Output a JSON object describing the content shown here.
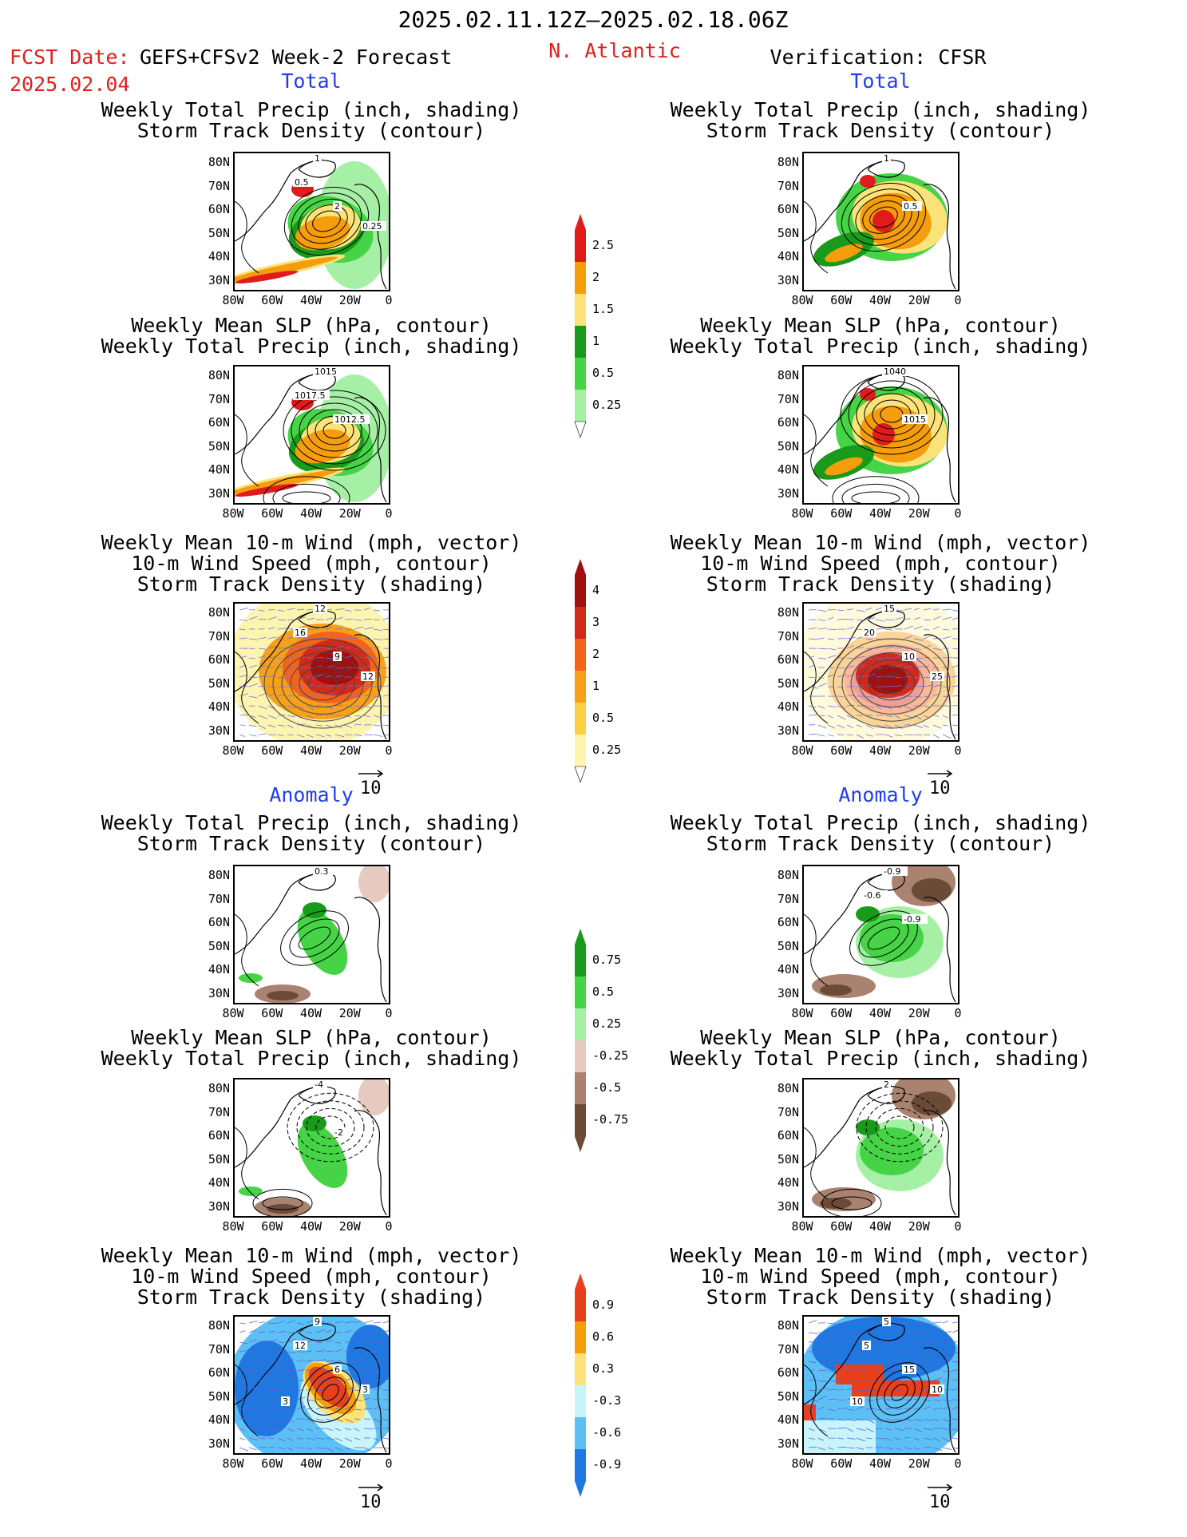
{
  "header": {
    "period": "2025.02.11.12Z–2025.02.18.06Z",
    "fcst_label": "FCST Date:",
    "model": "GEFS+CFSv2 Week-2 Forecast",
    "fcst_date": "2025.02.04",
    "region": "N. Atlantic",
    "verification": "Verification: CFSR"
  },
  "sections": {
    "total": "Total",
    "anomaly": "Anomaly"
  },
  "titles": {
    "p1_l1": "Weekly Total Precip (inch, shading)",
    "p1_l2": "Storm Track Density (contour)",
    "p2_l1": "Weekly Mean SLP (hPa, contour)",
    "p2_l2": "Weekly Total Precip (inch, shading)",
    "p3_l1": "Weekly Mean 10-m Wind (mph, vector)",
    "p3_l2": "10-m Wind Speed (mph, contour)",
    "p3_l3": "Storm Track Density (shading)"
  },
  "axes": {
    "lat": [
      "80N",
      "70N",
      "60N",
      "50N",
      "40N",
      "30N"
    ],
    "lon": [
      "80W",
      "60W",
      "40W",
      "20W",
      "0"
    ]
  },
  "vector_ref": "10",
  "colorbars": {
    "precip_total": {
      "labels": [
        "2.5",
        "2",
        "1.5",
        "1",
        "0.5",
        "0.25"
      ],
      "colors": [
        "#e01b1b",
        "#f59d0b",
        "#fbe37a",
        "#1a9a1a",
        "#46d346",
        "#a6f0a6"
      ]
    },
    "storm_total": {
      "labels": [
        "4",
        "3",
        "2",
        "1",
        "0.5",
        "0.25"
      ],
      "colors": [
        "#a01010",
        "#d22a1a",
        "#f2641b",
        "#f7a11a",
        "#fbd048",
        "#fdf4b0"
      ]
    },
    "precip_anom": {
      "labels": [
        "0.75",
        "0.5",
        "0.25",
        "-0.25",
        "-0.5",
        "-0.75"
      ],
      "colors": [
        "#1a9a1a",
        "#46d346",
        "#a6f0a6",
        "#e6c9c0",
        "#a98270",
        "#6b4a38"
      ]
    },
    "storm_anom": {
      "labels": [
        "0.9",
        "0.6",
        "0.3",
        "-0.3",
        "-0.6",
        "-0.9"
      ],
      "colors": [
        "#e8401b",
        "#f59d0b",
        "#fbe37a",
        "#c8f4fb",
        "#5cc0f5",
        "#1f78e0"
      ]
    }
  },
  "contour_labels": {
    "fc_precip": [
      "1",
      "2",
      "0.5",
      "0.25"
    ],
    "ver_precip": [
      "1",
      "0.5"
    ],
    "fc_slp": [
      "1015",
      "1012.5",
      "1017.5"
    ],
    "ver_slp": [
      "1040",
      "1015"
    ],
    "fc_wind": [
      "12",
      "9",
      "16",
      "12"
    ],
    "ver_wind": [
      "15",
      "10",
      "20",
      "25"
    ],
    "fc_pa": [
      "0.3"
    ],
    "ver_pa": [
      "-0.9",
      "-0.9",
      "-0.6"
    ],
    "fc_sa": [
      "-4",
      "-2"
    ],
    "ver_sa": [
      "2"
    ],
    "fc_wa": [
      "9",
      "6",
      "12",
      "3",
      "3"
    ],
    "ver_wa": [
      "5",
      "15",
      "5",
      "10",
      "10"
    ]
  }
}
